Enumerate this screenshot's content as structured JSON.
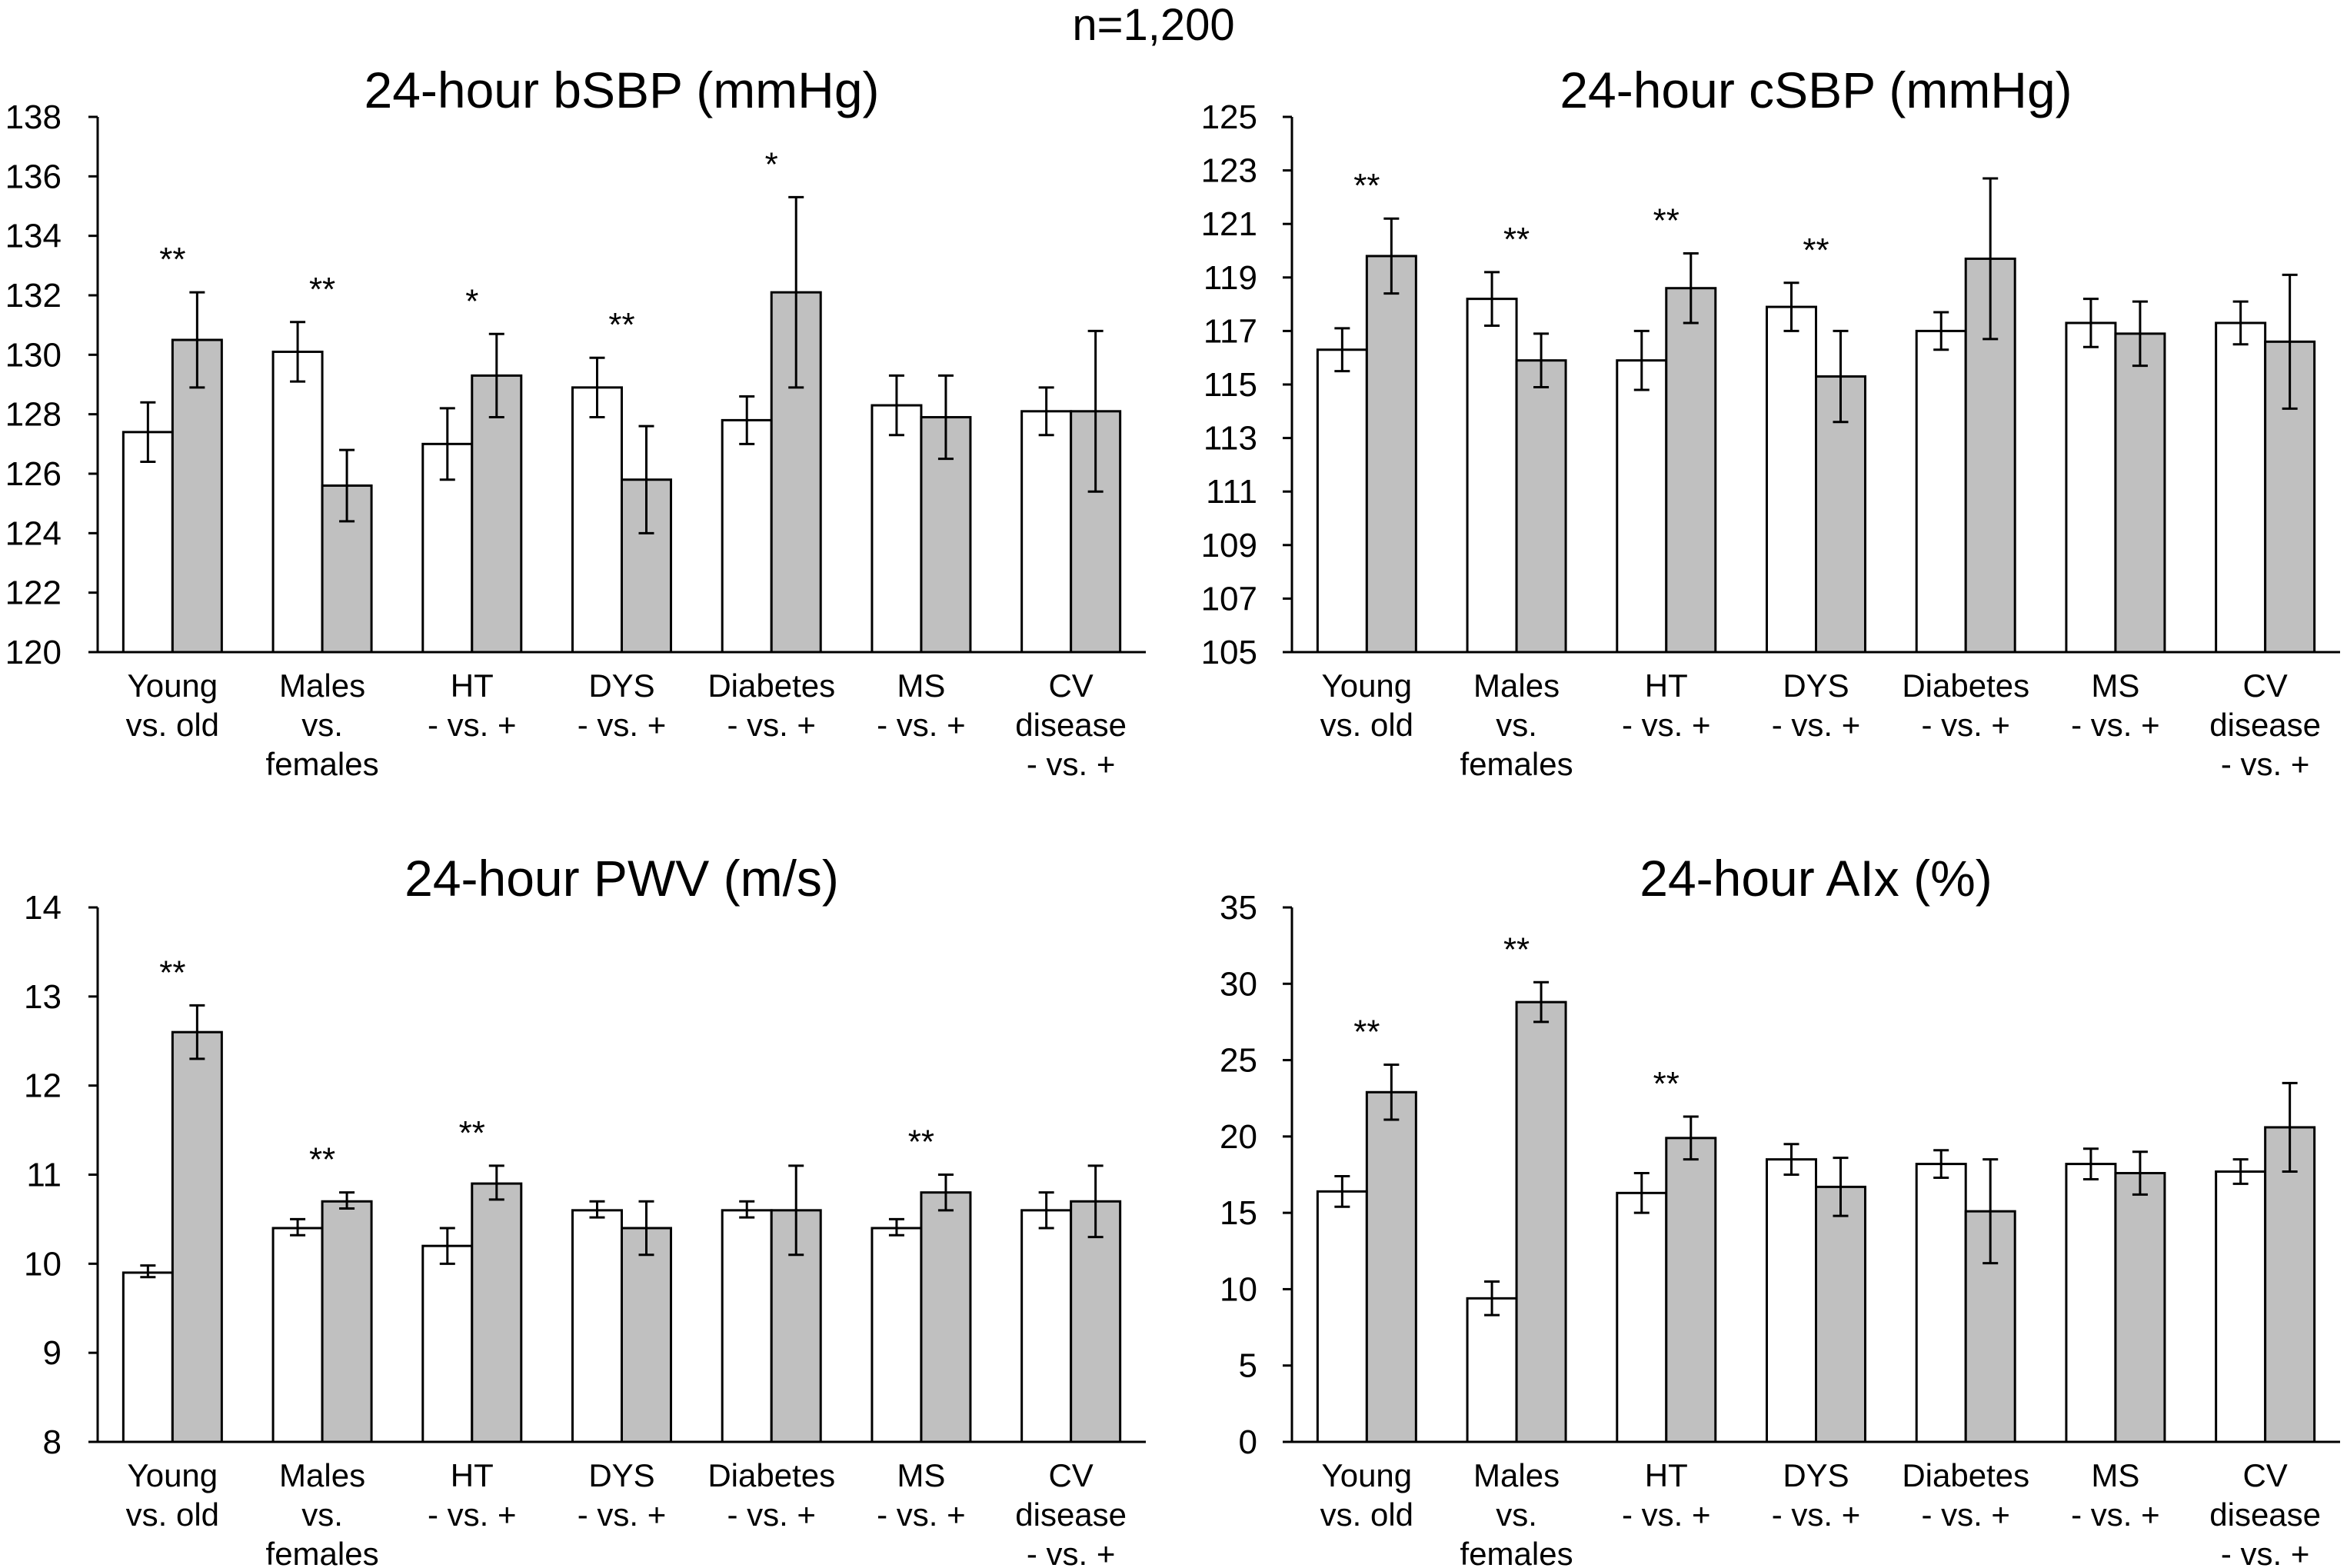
{
  "figure_title": "n=1,200",
  "chart_data": [
    {
      "type": "bar",
      "title": "24-hour bSBP (mmHg)",
      "ylim": [
        120,
        138
      ],
      "ytick_step": 2,
      "categories": [
        [
          "Young",
          "vs. old"
        ],
        [
          "Males",
          "vs.",
          "females"
        ],
        [
          "HT",
          "- vs. +"
        ],
        [
          "DYS",
          "- vs. +"
        ],
        [
          "Diabetes",
          "- vs. +"
        ],
        [
          "MS",
          "- vs. +"
        ],
        [
          "CV",
          "disease",
          "- vs. +"
        ]
      ],
      "series": [
        {
          "fill": "#ffffff",
          "values": [
            127.4,
            130.1,
            127.0,
            128.9,
            127.8,
            128.3,
            128.1
          ],
          "err_low": [
            126.4,
            129.1,
            125.8,
            127.9,
            127.0,
            127.3,
            127.3
          ],
          "err_high": [
            128.4,
            131.1,
            128.2,
            129.9,
            128.6,
            129.3,
            128.9
          ]
        },
        {
          "fill": "#c0c0c0",
          "values": [
            130.5,
            125.6,
            129.3,
            125.8,
            132.1,
            127.9,
            128.1
          ],
          "err_low": [
            128.9,
            124.4,
            127.9,
            124.0,
            128.9,
            126.5,
            125.4
          ],
          "err_high": [
            132.1,
            126.8,
            130.7,
            127.6,
            135.3,
            129.3,
            130.8
          ]
        }
      ],
      "significance": [
        "**",
        "**",
        "*",
        "**",
        "*",
        "",
        ""
      ]
    },
    {
      "type": "bar",
      "title": "24-hour cSBP (mmHg)",
      "ylim": [
        105,
        125
      ],
      "ytick_step": 2,
      "categories": [
        [
          "Young",
          "vs. old"
        ],
        [
          "Males",
          "vs.",
          "females"
        ],
        [
          "HT",
          "- vs. +"
        ],
        [
          "DYS",
          "- vs. +"
        ],
        [
          "Diabetes",
          "- vs. +"
        ],
        [
          "MS",
          "- vs. +"
        ],
        [
          "CV",
          "disease",
          "- vs. +"
        ]
      ],
      "series": [
        {
          "fill": "#ffffff",
          "values": [
            116.3,
            118.2,
            115.9,
            117.9,
            117.0,
            117.3,
            117.3
          ],
          "err_low": [
            115.5,
            117.2,
            114.8,
            117.0,
            116.3,
            116.4,
            116.5
          ],
          "err_high": [
            117.1,
            119.2,
            117.0,
            118.8,
            117.7,
            118.2,
            118.1
          ]
        },
        {
          "fill": "#c0c0c0",
          "values": [
            119.8,
            115.9,
            118.6,
            115.3,
            119.7,
            116.9,
            116.6
          ],
          "err_low": [
            118.4,
            114.9,
            117.3,
            113.6,
            116.7,
            115.7,
            114.1
          ],
          "err_high": [
            121.2,
            116.9,
            119.9,
            117.0,
            122.7,
            118.1,
            119.1
          ]
        }
      ],
      "significance": [
        "**",
        "**",
        "**",
        "**",
        "",
        "",
        ""
      ]
    },
    {
      "type": "bar",
      "title": "24-hour PWV (m/s)",
      "ylim": [
        8,
        14
      ],
      "ytick_step": 1,
      "categories": [
        [
          "Young",
          "vs. old"
        ],
        [
          "Males",
          "vs.",
          "females"
        ],
        [
          "HT",
          "- vs. +"
        ],
        [
          "DYS",
          "- vs. +"
        ],
        [
          "Diabetes",
          "- vs. +"
        ],
        [
          "MS",
          "- vs. +"
        ],
        [
          "CV",
          "disease",
          "- vs. +"
        ]
      ],
      "series": [
        {
          "fill": "#ffffff",
          "values": [
            9.9,
            10.4,
            10.2,
            10.6,
            10.6,
            10.4,
            10.6
          ],
          "err_low": [
            9.85,
            10.32,
            10.0,
            10.52,
            10.52,
            10.32,
            10.4
          ],
          "err_high": [
            9.98,
            10.5,
            10.4,
            10.7,
            10.7,
            10.5,
            10.8
          ]
        },
        {
          "fill": "#c0c0c0",
          "values": [
            12.6,
            10.7,
            10.9,
            10.4,
            10.6,
            10.8,
            10.7
          ],
          "err_low": [
            12.3,
            10.62,
            10.72,
            10.1,
            10.1,
            10.6,
            10.3
          ],
          "err_high": [
            12.9,
            10.8,
            11.1,
            10.7,
            11.1,
            11.0,
            11.1
          ]
        }
      ],
      "significance": [
        "**",
        "**",
        "**",
        "",
        "",
        "**",
        ""
      ]
    },
    {
      "type": "bar",
      "title": "24-hour AIx (%)",
      "ylim": [
        0,
        35
      ],
      "ytick_step": 5,
      "categories": [
        [
          "Young",
          "vs. old"
        ],
        [
          "Males",
          "vs.",
          "females"
        ],
        [
          "HT",
          "- vs. +"
        ],
        [
          "DYS",
          "- vs. +"
        ],
        [
          "Diabetes",
          "- vs. +"
        ],
        [
          "MS",
          "- vs. +"
        ],
        [
          "CV",
          "disease",
          "- vs. +"
        ]
      ],
      "series": [
        {
          "fill": "#ffffff",
          "values": [
            16.4,
            9.4,
            16.3,
            18.5,
            18.2,
            18.2,
            17.7
          ],
          "err_low": [
            15.4,
            8.3,
            15.0,
            17.5,
            17.3,
            17.2,
            16.9
          ],
          "err_high": [
            17.4,
            10.5,
            17.6,
            19.5,
            19.1,
            19.2,
            18.5
          ]
        },
        {
          "fill": "#c0c0c0",
          "values": [
            22.9,
            28.8,
            19.9,
            16.7,
            15.1,
            17.6,
            20.6
          ],
          "err_low": [
            21.1,
            27.5,
            18.5,
            14.8,
            11.7,
            16.2,
            17.7
          ],
          "err_high": [
            24.7,
            30.1,
            21.3,
            18.6,
            18.5,
            19.0,
            23.5
          ]
        }
      ],
      "significance": [
        "**",
        "**",
        "**",
        "",
        "",
        "",
        ""
      ]
    }
  ]
}
